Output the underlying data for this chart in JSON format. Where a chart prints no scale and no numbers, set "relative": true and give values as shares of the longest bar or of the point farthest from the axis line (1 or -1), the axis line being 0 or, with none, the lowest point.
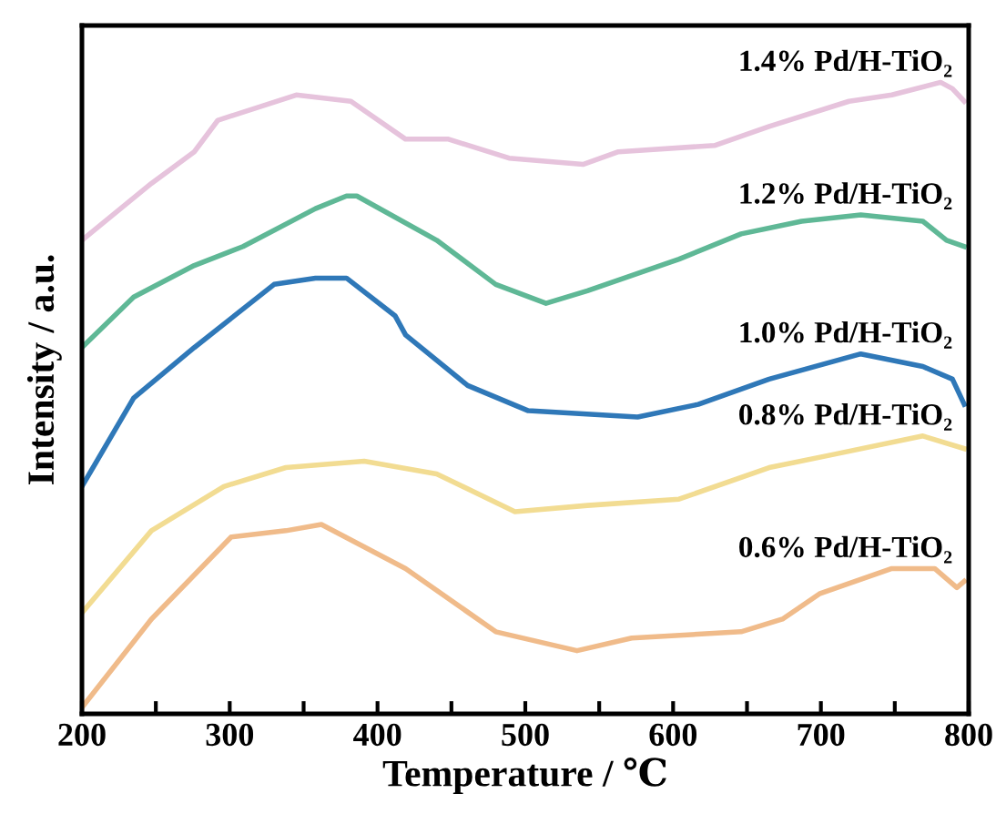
{
  "chart_data": {
    "type": "line",
    "relative": true,
    "xlabel": "Temperature / ℃",
    "ylabel": "Intensity / a.u.",
    "xlim": [
      200,
      800
    ],
    "xticks": [
      200,
      {
        "value": 250,
        "label": null
      },
      300,
      {
        "value": 350,
        "label": null
      },
      400,
      {
        "value": 450,
        "label": null
      },
      500,
      {
        "value": 550,
        "label": null
      },
      600,
      {
        "value": 650,
        "label": null
      },
      700,
      {
        "value": 750,
        "label": null
      },
      800
    ],
    "grid": false,
    "legend": false,
    "marker": "none",
    "line_style": "solid",
    "series": [
      {
        "name": "1.4% Pd/H-TiO₂",
        "color": "#e6c3dc",
        "x": [
          200,
          247,
          276,
          292,
          345,
          382,
          419,
          448,
          489,
          539,
          563,
          628,
          665,
          719,
          748,
          781,
          789,
          797
        ],
        "values": [
          0.75,
          0.84,
          0.89,
          0.94,
          0.98,
          0.97,
          0.91,
          0.91,
          0.88,
          0.87,
          0.89,
          0.9,
          0.93,
          0.97,
          0.98,
          1.0,
          0.99,
          0.97
        ]
      },
      {
        "name": "1.2% Pd/H-TiO₂",
        "color": "#5fb896",
        "x": [
          200,
          235,
          276,
          309,
          358,
          379,
          386,
          440,
          480,
          514,
          542,
          604,
          646,
          687,
          727,
          769,
          785,
          797
        ],
        "values": [
          0.58,
          0.66,
          0.71,
          0.74,
          0.8,
          0.82,
          0.82,
          0.75,
          0.68,
          0.65,
          0.67,
          0.72,
          0.76,
          0.78,
          0.79,
          0.78,
          0.75,
          0.74
        ]
      },
      {
        "name": "1.0% Pd/H-TiO₂",
        "color": "#2f78b8",
        "x": [
          200,
          235,
          276,
          330,
          358,
          379,
          412,
          419,
          461,
          502,
          576,
          617,
          665,
          727,
          769,
          789,
          797
        ],
        "values": [
          0.36,
          0.5,
          0.58,
          0.68,
          0.69,
          0.69,
          0.63,
          0.6,
          0.52,
          0.48,
          0.47,
          0.49,
          0.53,
          0.57,
          0.55,
          0.53,
          0.49
        ]
      },
      {
        "name": "0.8% Pd/H-TiO₂",
        "color": "#f2dc92",
        "x": [
          200,
          247,
          296,
          338,
          391,
          440,
          493,
          542,
          604,
          665,
          707,
          769,
          797
        ],
        "values": [
          0.16,
          0.29,
          0.36,
          0.39,
          0.4,
          0.38,
          0.32,
          0.33,
          0.34,
          0.39,
          0.41,
          0.44,
          0.42
        ]
      },
      {
        "name": "0.6% Pd/H-TiO₂",
        "color": "#f0bb8a",
        "x": [
          200,
          247,
          301,
          338,
          362,
          419,
          480,
          535,
          572,
          646,
          674,
          699,
          748,
          777,
          792,
          797
        ],
        "values": [
          0.01,
          0.15,
          0.28,
          0.29,
          0.3,
          0.23,
          0.13,
          0.1,
          0.12,
          0.13,
          0.15,
          0.19,
          0.23,
          0.23,
          0.2,
          0.21
        ]
      }
    ]
  }
}
